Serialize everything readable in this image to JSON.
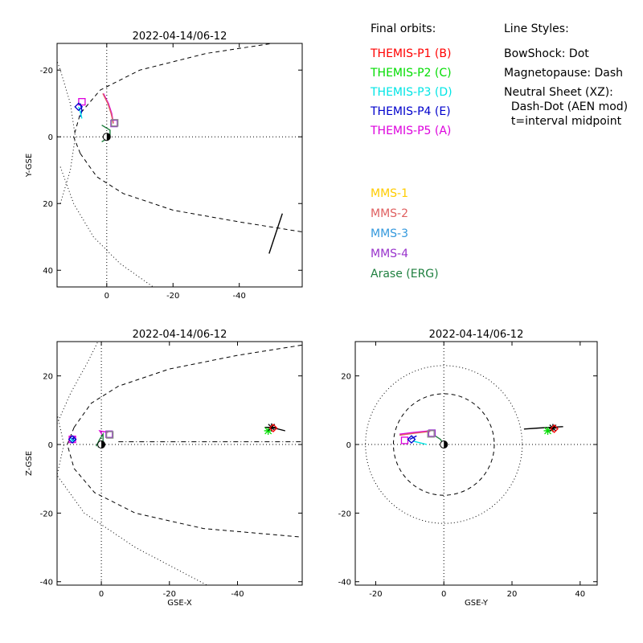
{
  "legend": {
    "orbits_title": "Final orbits:",
    "orbits": [
      {
        "label": "THEMIS-P1 (B)",
        "color": "#ff0000"
      },
      {
        "label": "THEMIS-P2 (C)",
        "color": "#00dd00"
      },
      {
        "label": "THEMIS-P3 (D)",
        "color": "#00e5e5"
      },
      {
        "label": "THEMIS-P4 (E)",
        "color": "#0000cc"
      },
      {
        "label": "THEMIS-P5 (A)",
        "color": "#dd00dd"
      }
    ],
    "mms": [
      {
        "label": "MMS-1",
        "color": "#ffcc00"
      },
      {
        "label": "MMS-2",
        "color": "#e06060"
      },
      {
        "label": "MMS-3",
        "color": "#3399dd"
      },
      {
        "label": "MMS-4",
        "color": "#9933cc"
      },
      {
        "label": "Arase (ERG)",
        "color": "#208040"
      }
    ],
    "styles_title": "Line Styles:",
    "styles": [
      "BowShock: Dot",
      "Magnetopause: Dash",
      "Neutral Sheet (XZ):",
      "  Dash-Dot (AEN mod)",
      "  t=interval midpoint"
    ]
  },
  "chart_data": [
    {
      "type": "line",
      "title": "2022-04-14/06-12",
      "xlabel": "",
      "ylabel": "Y-GSE",
      "xlim": [
        15,
        -59
      ],
      "ylim": [
        -28,
        45
      ],
      "xticks": [
        0,
        -20,
        -40
      ],
      "xticklabels": [
        "0",
        "-20",
        "-40"
      ],
      "yticks": [
        -20,
        0,
        20,
        40
      ],
      "yticklabels": [
        "-20",
        "0",
        "20",
        "40"
      ],
      "series": [
        {
          "style": "dot",
          "color": "#000000",
          "points": [
            [
              14,
              20
            ],
            [
              11,
              10
            ],
            [
              9.5,
              0
            ],
            [
              11,
              -10
            ],
            [
              14,
              -20
            ],
            [
              17,
              -28
            ]
          ]
        },
        {
          "style": "dot",
          "color": "#000000",
          "points": [
            [
              14,
              9
            ],
            [
              10,
              20
            ],
            [
              4,
              30
            ],
            [
              -4,
              38
            ],
            [
              -14,
              45
            ]
          ]
        },
        {
          "style": "dash",
          "color": "#000000",
          "points": [
            [
              8,
              5
            ],
            [
              10,
              0
            ],
            [
              8,
              -7
            ],
            [
              2,
              -14
            ],
            [
              -10,
              -20
            ],
            [
              -30,
              -25
            ],
            [
              -50,
              -28
            ],
            [
              -59,
              -29
            ]
          ]
        },
        {
          "style": "dash",
          "color": "#000000",
          "points": [
            [
              8,
              5
            ],
            [
              3,
              12
            ],
            [
              -5,
              17
            ],
            [
              -20,
              22
            ],
            [
              -40,
              25.5
            ],
            [
              -59,
              28.5
            ]
          ]
        },
        {
          "style": "dot",
          "color": "#000000",
          "points": [
            [
              15,
              0
            ],
            [
              -59,
              0
            ]
          ]
        },
        {
          "style": "dot",
          "color": "#000000",
          "points": [
            [
              0,
              -28
            ],
            [
              0,
              45
            ]
          ]
        },
        {
          "style": "solid",
          "color": "#000000",
          "points": [
            [
              -49,
              35
            ],
            [
              -51,
              29
            ],
            [
              -53,
              23
            ]
          ]
        },
        {
          "style": "solid",
          "color": "#dd00dd",
          "points": [
            [
              1,
              -13
            ],
            [
              -0.5,
              -10
            ],
            [
              -1.5,
              -7
            ],
            [
              -2,
              -4
            ]
          ]
        },
        {
          "style": "solid",
          "color": "#e06060",
          "points": [
            [
              1.2,
              -13
            ],
            [
              -0.3,
              -10
            ],
            [
              -1.3,
              -7
            ],
            [
              -2,
              -4
            ]
          ]
        },
        {
          "style": "solid",
          "color": "#0000cc",
          "points": [
            [
              8,
              -10
            ],
            [
              7.5,
              -8
            ],
            [
              8,
              -6
            ]
          ]
        },
        {
          "style": "solid",
          "color": "#00e5e5",
          "points": [
            [
              8.5,
              -9
            ],
            [
              8,
              -7.5
            ],
            [
              7.5,
              -5.5
            ]
          ]
        },
        {
          "style": "solid",
          "color": "#208040",
          "points": [
            [
              1.5,
              -3.5
            ],
            [
              -1,
              -2
            ],
            [
              -1,
              0
            ],
            [
              1.5,
              1.5
            ]
          ]
        },
        {
          "style": "solid",
          "color": "#00dd00",
          "points": [
            [
              -48,
              -31
            ],
            [
              -49,
              -29
            ]
          ]
        },
        {
          "style": "solid",
          "color": "#ff0000",
          "points": [
            [
              -50,
              -28
            ],
            [
              -50,
              -33
            ]
          ]
        }
      ],
      "markers": [
        {
          "shape": "square",
          "color": "#dd00dd",
          "x": 7.5,
          "y": -10.5
        },
        {
          "shape": "diamond",
          "color": "#0000cc",
          "x": 8.5,
          "y": -9
        },
        {
          "shape": "square",
          "color": "#9933cc",
          "x": -2.2,
          "y": -4
        },
        {
          "shape": "square",
          "color": "#888888",
          "x": -2.4,
          "y": -4.2
        },
        {
          "shape": "star",
          "color": "#00dd00",
          "x": -48,
          "y": -30.5
        },
        {
          "shape": "star",
          "color": "#000000",
          "x": -50,
          "y": -32
        },
        {
          "shape": "diamond",
          "color": "#ff0000",
          "x": -50.3,
          "y": -32.8
        },
        {
          "shape": "earth",
          "color": "#000000",
          "x": 0,
          "y": 0
        }
      ]
    },
    {
      "type": "line",
      "title": "2022-04-14/06-12",
      "xlabel": "GSE-X",
      "ylabel": "Z-GSE",
      "xlim": [
        13,
        -59
      ],
      "ylim": [
        30,
        -41
      ],
      "xticks": [
        0,
        -20,
        -40
      ],
      "xticklabels": [
        "0",
        "-20",
        "-40"
      ],
      "yticks": [
        20,
        0,
        -20,
        -40
      ],
      "yticklabels": [
        "20",
        "0",
        "-20",
        "-40"
      ],
      "series": [
        {
          "style": "dot",
          "color": "#000000",
          "points": [
            [
              13,
              9
            ],
            [
              11,
              0
            ],
            [
              13,
              -9
            ],
            [
              5,
              -20
            ],
            [
              -10,
              -30
            ],
            [
              -31,
              -41
            ]
          ]
        },
        {
          "style": "dot",
          "color": "#000000",
          "points": [
            [
              13,
              6
            ],
            [
              9,
              15
            ],
            [
              4,
              24
            ],
            [
              1,
              30
            ]
          ]
        },
        {
          "style": "dash",
          "color": "#000000",
          "points": [
            [
              8,
              5
            ],
            [
              10,
              0
            ],
            [
              8,
              -7
            ],
            [
              2,
              -14
            ],
            [
              -10,
              -20
            ],
            [
              -30,
              -24.5
            ],
            [
              -59,
              -27
            ]
          ]
        },
        {
          "style": "dash",
          "color": "#000000",
          "points": [
            [
              8,
              5
            ],
            [
              3,
              12
            ],
            [
              -5,
              17
            ],
            [
              -20,
              22
            ],
            [
              -40,
              26
            ],
            [
              -59,
              29
            ]
          ]
        },
        {
          "style": "dot",
          "color": "#000000",
          "points": [
            [
              13,
              0
            ],
            [
              -59,
              0
            ]
          ]
        },
        {
          "style": "dot",
          "color": "#000000",
          "points": [
            [
              0,
              30
            ],
            [
              0,
              -41
            ]
          ]
        },
        {
          "style": "dashdot",
          "color": "#000000",
          "points": [
            [
              -5,
              0.8
            ],
            [
              -59,
              0.8
            ]
          ]
        },
        {
          "style": "solid",
          "color": "#000000",
          "points": [
            [
              -48,
              5
            ],
            [
              -50,
              5
            ],
            [
              -54,
              4
            ]
          ]
        },
        {
          "style": "solid",
          "color": "#dd00dd",
          "points": [
            [
              -0.5,
              2.5
            ],
            [
              0.5,
              4
            ],
            [
              -2,
              3.5
            ]
          ]
        },
        {
          "style": "solid",
          "color": "#208040",
          "points": [
            [
              1.5,
              -0.5
            ],
            [
              0.5,
              1.5
            ],
            [
              -0.5,
              3
            ],
            [
              -0.5,
              0.5
            ],
            [
              1,
              -0.8
            ]
          ]
        },
        {
          "style": "solid",
          "color": "#0000cc",
          "points": [
            [
              8.5,
              1
            ],
            [
              8,
              2
            ],
            [
              9,
              1.5
            ]
          ]
        },
        {
          "style": "solid",
          "color": "#00e5e5",
          "points": [
            [
              7.5,
              1.5
            ],
            [
              8.5,
              1
            ],
            [
              9,
              1.8
            ]
          ]
        }
      ],
      "markers": [
        {
          "shape": "square",
          "color": "#dd00dd",
          "x": 8.5,
          "y": 1.5
        },
        {
          "shape": "diamond",
          "color": "#0000cc",
          "x": 8.5,
          "y": 1.5
        },
        {
          "shape": "square",
          "color": "#9933cc",
          "x": -2.3,
          "y": 3
        },
        {
          "shape": "square",
          "color": "#888888",
          "x": -2.5,
          "y": 2.8
        },
        {
          "shape": "star",
          "color": "#00dd00",
          "x": -49,
          "y": 4
        },
        {
          "shape": "star",
          "color": "#000000",
          "x": -50,
          "y": 5
        },
        {
          "shape": "diamond",
          "color": "#ff0000",
          "x": -50.5,
          "y": 4.8
        },
        {
          "shape": "earth",
          "color": "#000000",
          "x": 0,
          "y": 0
        }
      ]
    },
    {
      "type": "line",
      "title": "2022-04-14/06-12",
      "xlabel": "GSE-Y",
      "ylabel": "",
      "xlim": [
        -26,
        45
      ],
      "ylim": [
        30,
        -41
      ],
      "xticks": [
        -20,
        0,
        20,
        40
      ],
      "xticklabels": [
        "-20",
        "0",
        "20",
        "40"
      ],
      "yticks": [
        20,
        0,
        -20,
        -40
      ],
      "yticklabels": [
        "20",
        "0",
        "-20",
        "-40"
      ],
      "circles": [
        {
          "style": "dot",
          "radius": 23
        },
        {
          "style": "dash",
          "radius": 14.8
        }
      ],
      "series": [
        {
          "style": "dot",
          "color": "#000000",
          "points": [
            [
              -26,
              0
            ],
            [
              45,
              0
            ]
          ]
        },
        {
          "style": "dot",
          "color": "#000000",
          "points": [
            [
              0,
              30
            ],
            [
              0,
              -41
            ]
          ]
        },
        {
          "style": "solid",
          "color": "#000000",
          "points": [
            [
              23.5,
              4.5
            ],
            [
              28,
              4.8
            ],
            [
              35,
              5.2
            ]
          ]
        },
        {
          "style": "solid",
          "color": "#dd00dd",
          "points": [
            [
              -13,
              3
            ],
            [
              -9,
              3.5
            ],
            [
              -4,
              4
            ]
          ]
        },
        {
          "style": "solid",
          "color": "#e06060",
          "points": [
            [
              -13,
              2.7
            ],
            [
              -8.5,
              3.3
            ],
            [
              -4,
              3.8
            ]
          ]
        },
        {
          "style": "solid",
          "color": "#0000cc",
          "points": [
            [
              -10,
              1.5
            ],
            [
              -9,
              2
            ],
            [
              -8,
              2.5
            ]
          ]
        },
        {
          "style": "solid",
          "color": "#00e5e5",
          "points": [
            [
              -9,
              1
            ],
            [
              -7,
              0.5
            ],
            [
              -5,
              0
            ]
          ]
        },
        {
          "style": "solid",
          "color": "#208040",
          "points": [
            [
              0,
              0
            ],
            [
              -1,
              1.5
            ],
            [
              -2.5,
              2.5
            ]
          ]
        }
      ],
      "markers": [
        {
          "shape": "square",
          "color": "#dd00dd",
          "x": -11.5,
          "y": 1.2
        },
        {
          "shape": "diamond",
          "color": "#0000cc",
          "x": -9.5,
          "y": 1.5
        },
        {
          "shape": "square",
          "color": "#9933cc",
          "x": -3.5,
          "y": 3.3
        },
        {
          "shape": "square",
          "color": "#888888",
          "x": -3.8,
          "y": 3.1
        },
        {
          "shape": "star",
          "color": "#00dd00",
          "x": 30.5,
          "y": 4
        },
        {
          "shape": "star",
          "color": "#000000",
          "x": 32,
          "y": 4.8
        },
        {
          "shape": "diamond",
          "color": "#ff0000",
          "x": 32.4,
          "y": 4.6
        },
        {
          "shape": "earth",
          "color": "#000000",
          "x": 0,
          "y": 0
        }
      ]
    }
  ]
}
